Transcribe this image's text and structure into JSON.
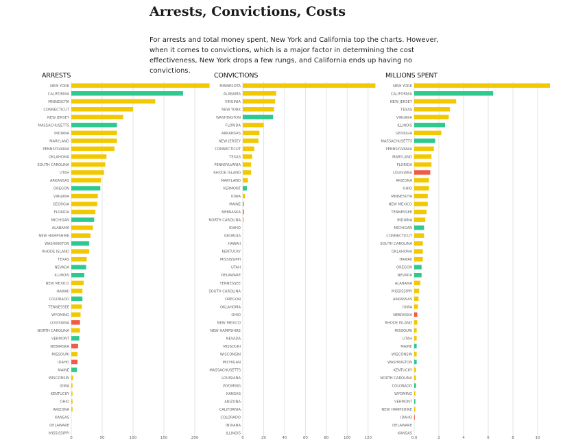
{
  "title": "Arrests, Convictions, Costs",
  "intro": "For arrests and total money spent, New York and California top the charts. However, when it comes to convictions, which is a major factor in determining the cost effectiveness, New York drops a few rungs, and California ends up having no convictions.",
  "colors": {
    "yellow": "#f2c900",
    "green": "#2ec98f",
    "red": "#ef5b43",
    "grid": "#e3e3e3",
    "label": "#666666"
  },
  "chart_data": [
    {
      "type": "bar",
      "title": "ARRESTS",
      "xlim": [
        0,
        220
      ],
      "ticks": [
        0,
        50,
        100,
        150,
        200
      ],
      "bars": [
        {
          "label": "NEW YORK",
          "value": 224,
          "color": "yellow"
        },
        {
          "label": "CALIFORNIA",
          "value": 181,
          "color": "green"
        },
        {
          "label": "MINNESOTA",
          "value": 136,
          "color": "yellow"
        },
        {
          "label": "CONNECTICUT",
          "value": 100,
          "color": "yellow"
        },
        {
          "label": "NEW JERSEY",
          "value": 84,
          "color": "yellow"
        },
        {
          "label": "MASSACHUSETTS",
          "value": 74,
          "color": "green"
        },
        {
          "label": "INDIANA",
          "value": 74,
          "color": "yellow"
        },
        {
          "label": "MARYLAND",
          "value": 74,
          "color": "yellow"
        },
        {
          "label": "PENNSYLVANIA",
          "value": 70,
          "color": "yellow"
        },
        {
          "label": "OKLAHOMA",
          "value": 57,
          "color": "yellow"
        },
        {
          "label": "SOUTH CAROLINA",
          "value": 55,
          "color": "yellow"
        },
        {
          "label": "UTAH",
          "value": 53,
          "color": "yellow"
        },
        {
          "label": "ARKANSAS",
          "value": 48,
          "color": "yellow"
        },
        {
          "label": "OREGON",
          "value": 47,
          "color": "green"
        },
        {
          "label": "VIRGINIA",
          "value": 43,
          "color": "yellow"
        },
        {
          "label": "GEORGIA",
          "value": 42,
          "color": "yellow"
        },
        {
          "label": "FLORIDA",
          "value": 39,
          "color": "yellow"
        },
        {
          "label": "MICHIGAN",
          "value": 37,
          "color": "green"
        },
        {
          "label": "ALABAMA",
          "value": 35,
          "color": "yellow"
        },
        {
          "label": "NEW HAMPSHIRE",
          "value": 31,
          "color": "yellow"
        },
        {
          "label": "WASHINGTON",
          "value": 29,
          "color": "green"
        },
        {
          "label": "RHODE ISLAND",
          "value": 29,
          "color": "yellow"
        },
        {
          "label": "TEXAS",
          "value": 25,
          "color": "yellow"
        },
        {
          "label": "NEVADA",
          "value": 24,
          "color": "green"
        },
        {
          "label": "ILLINOIS",
          "value": 21,
          "color": "green"
        },
        {
          "label": "NEW MEXICO",
          "value": 20,
          "color": "yellow"
        },
        {
          "label": "HAWAII",
          "value": 18,
          "color": "yellow"
        },
        {
          "label": "COLORADO",
          "value": 18,
          "color": "green"
        },
        {
          "label": "TENNESSEE",
          "value": 17,
          "color": "yellow"
        },
        {
          "label": "WYOMING",
          "value": 15,
          "color": "yellow"
        },
        {
          "label": "LOUISIANA",
          "value": 14,
          "color": "red"
        },
        {
          "label": "NORTH CAROLINA",
          "value": 14,
          "color": "yellow"
        },
        {
          "label": "VERMONT",
          "value": 13,
          "color": "green"
        },
        {
          "label": "NEBRASKA",
          "value": 11,
          "color": "red"
        },
        {
          "label": "MISSOURI",
          "value": 10,
          "color": "yellow"
        },
        {
          "label": "IDAHO",
          "value": 10,
          "color": "red"
        },
        {
          "label": "MAINE",
          "value": 9,
          "color": "green"
        },
        {
          "label": "WISCONSIN",
          "value": 3,
          "color": "yellow"
        },
        {
          "label": "IOWA",
          "value": 2,
          "color": "yellow"
        },
        {
          "label": "KENTUCKY",
          "value": 2,
          "color": "yellow"
        },
        {
          "label": "OHIO",
          "value": 2,
          "color": "yellow"
        },
        {
          "label": "ARIZONA",
          "value": 2,
          "color": "yellow"
        },
        {
          "label": "KANSAS",
          "value": 0,
          "color": "yellow"
        },
        {
          "label": "DELAWARE",
          "value": 0,
          "color": "yellow"
        },
        {
          "label": "MISSISSIPPI",
          "value": 0,
          "color": "yellow"
        }
      ]
    },
    {
      "type": "bar",
      "title": "CONVICTIONS",
      "xlim": [
        0,
        130
      ],
      "ticks": [
        0,
        20,
        40,
        60,
        80,
        100,
        120
      ],
      "bars": [
        {
          "label": "MINNESOTA",
          "value": 127,
          "color": "yellow"
        },
        {
          "label": "ALABAMA",
          "value": 32,
          "color": "yellow"
        },
        {
          "label": "VIRGINIA",
          "value": 31,
          "color": "yellow"
        },
        {
          "label": "NEW YORK",
          "value": 30,
          "color": "yellow"
        },
        {
          "label": "WASHINGTON",
          "value": 29,
          "color": "green"
        },
        {
          "label": "FLORIDA",
          "value": 20,
          "color": "yellow"
        },
        {
          "label": "ARKANSAS",
          "value": 16,
          "color": "yellow"
        },
        {
          "label": "NEW JERSEY",
          "value": 15,
          "color": "yellow"
        },
        {
          "label": "CONNECTICUT",
          "value": 11,
          "color": "yellow"
        },
        {
          "label": "TEXAS",
          "value": 9,
          "color": "yellow"
        },
        {
          "label": "PENNSYLVANIA",
          "value": 8,
          "color": "yellow"
        },
        {
          "label": "RHODE ISLAND",
          "value": 8,
          "color": "yellow"
        },
        {
          "label": "MARYLAND",
          "value": 5,
          "color": "yellow"
        },
        {
          "label": "VERMONT",
          "value": 4,
          "color": "green"
        },
        {
          "label": "IOWA",
          "value": 2,
          "color": "yellow"
        },
        {
          "label": "MAINE",
          "value": 1,
          "color": "green"
        },
        {
          "label": "NEBRASKA",
          "value": 1,
          "color": "red"
        },
        {
          "label": "NORTH CAROLINA",
          "value": 1,
          "color": "yellow"
        },
        {
          "label": "IDAHO",
          "value": 0,
          "color": "red"
        },
        {
          "label": "GEORGIA",
          "value": 0,
          "color": "yellow"
        },
        {
          "label": "HAWAII",
          "value": 0,
          "color": "yellow"
        },
        {
          "label": "KENTUCKY",
          "value": 0,
          "color": "yellow"
        },
        {
          "label": "MISSISSIPPI",
          "value": 0,
          "color": "yellow"
        },
        {
          "label": "UTAH",
          "value": 0,
          "color": "yellow"
        },
        {
          "label": "DELAWARE",
          "value": 0,
          "color": "yellow"
        },
        {
          "label": "TENNESSEE",
          "value": 0,
          "color": "yellow"
        },
        {
          "label": "SOUTH CAROLINA",
          "value": 0,
          "color": "yellow"
        },
        {
          "label": "OREGON",
          "value": 0,
          "color": "green"
        },
        {
          "label": "OKLAHOMA",
          "value": 0,
          "color": "yellow"
        },
        {
          "label": "OHIO",
          "value": 0,
          "color": "yellow"
        },
        {
          "label": "NEW MEXICO",
          "value": 0,
          "color": "yellow"
        },
        {
          "label": "NEW HAMPSHIRE",
          "value": 0,
          "color": "yellow"
        },
        {
          "label": "NEVADA",
          "value": 0,
          "color": "green"
        },
        {
          "label": "MISSOURI",
          "value": 0,
          "color": "yellow"
        },
        {
          "label": "WISCONSIN",
          "value": 0,
          "color": "yellow"
        },
        {
          "label": "MICHIGAN",
          "value": 0,
          "color": "green"
        },
        {
          "label": "MASSACHUSETTS",
          "value": 0,
          "color": "green"
        },
        {
          "label": "LOUISIANA",
          "value": 0,
          "color": "red"
        },
        {
          "label": "WYOMING",
          "value": 0,
          "color": "yellow"
        },
        {
          "label": "KANSAS",
          "value": 0,
          "color": "yellow"
        },
        {
          "label": "ARIZONA",
          "value": 0,
          "color": "yellow"
        },
        {
          "label": "CALIFORNIA",
          "value": 0,
          "color": "green"
        },
        {
          "label": "COLORADO",
          "value": 0,
          "color": "green"
        },
        {
          "label": "INDIANA",
          "value": 0,
          "color": "yellow"
        },
        {
          "label": "ILLINOIS",
          "value": 0,
          "color": "green"
        }
      ]
    },
    {
      "type": "bar",
      "title": "MILLIONS SPENT",
      "xlim": [
        0,
        11
      ],
      "ticks": [
        0,
        2,
        4,
        6,
        8,
        10
      ],
      "tick_labels": [
        "0.0",
        "2",
        "4",
        "6",
        "8",
        "10"
      ],
      "bars": [
        {
          "label": "NEW YORK",
          "value": 11.0,
          "color": "yellow"
        },
        {
          "label": "CALIFORNIA",
          "value": 6.4,
          "color": "green"
        },
        {
          "label": "NEW JERSEY",
          "value": 3.4,
          "color": "yellow"
        },
        {
          "label": "TEXAS",
          "value": 2.9,
          "color": "yellow"
        },
        {
          "label": "VIRGINIA",
          "value": 2.8,
          "color": "yellow"
        },
        {
          "label": "ILLINOIS",
          "value": 2.5,
          "color": "green"
        },
        {
          "label": "GEORGIA",
          "value": 2.2,
          "color": "yellow"
        },
        {
          "label": "MASSACHUSETTS",
          "value": 1.7,
          "color": "green"
        },
        {
          "label": "PENNSYLVANIA",
          "value": 1.6,
          "color": "yellow"
        },
        {
          "label": "MARYLAND",
          "value": 1.4,
          "color": "yellow"
        },
        {
          "label": "FLORIDA",
          "value": 1.4,
          "color": "yellow"
        },
        {
          "label": "LOUISIANA",
          "value": 1.3,
          "color": "red"
        },
        {
          "label": "ARIZONA",
          "value": 1.2,
          "color": "yellow"
        },
        {
          "label": "OHIO",
          "value": 1.2,
          "color": "yellow"
        },
        {
          "label": "MINNESOTA",
          "value": 1.1,
          "color": "yellow"
        },
        {
          "label": "NEW MEXICO",
          "value": 1.1,
          "color": "yellow"
        },
        {
          "label": "TENNESSEE",
          "value": 1.0,
          "color": "yellow"
        },
        {
          "label": "INDIANA",
          "value": 0.9,
          "color": "yellow"
        },
        {
          "label": "MICHIGAN",
          "value": 0.8,
          "color": "green"
        },
        {
          "label": "CONNECTICUT",
          "value": 0.8,
          "color": "yellow"
        },
        {
          "label": "SOUTH CAROLINA",
          "value": 0.7,
          "color": "yellow"
        },
        {
          "label": "OKLAHOMA",
          "value": 0.7,
          "color": "yellow"
        },
        {
          "label": "HAWAII",
          "value": 0.7,
          "color": "yellow"
        },
        {
          "label": "OREGON",
          "value": 0.6,
          "color": "green"
        },
        {
          "label": "NEVADA",
          "value": 0.6,
          "color": "green"
        },
        {
          "label": "ALABAMA",
          "value": 0.5,
          "color": "yellow"
        },
        {
          "label": "MISSISSIPPI",
          "value": 0.4,
          "color": "yellow"
        },
        {
          "label": "ARKANSAS",
          "value": 0.35,
          "color": "yellow"
        },
        {
          "label": "IOWA",
          "value": 0.3,
          "color": "yellow"
        },
        {
          "label": "NEBRASKA",
          "value": 0.25,
          "color": "red"
        },
        {
          "label": "RHODE ISLAND",
          "value": 0.25,
          "color": "yellow"
        },
        {
          "label": "MISSOURI",
          "value": 0.2,
          "color": "yellow"
        },
        {
          "label": "UTAH",
          "value": 0.2,
          "color": "yellow"
        },
        {
          "label": "MAINE",
          "value": 0.2,
          "color": "green"
        },
        {
          "label": "WISCONSIN",
          "value": 0.2,
          "color": "yellow"
        },
        {
          "label": "WASHINGTON",
          "value": 0.2,
          "color": "green"
        },
        {
          "label": "KENTUCKY",
          "value": 0.15,
          "color": "yellow"
        },
        {
          "label": "NORTH CAROLINA",
          "value": 0.15,
          "color": "yellow"
        },
        {
          "label": "COLORADO",
          "value": 0.15,
          "color": "green"
        },
        {
          "label": "WYOMING",
          "value": 0.1,
          "color": "yellow"
        },
        {
          "label": "VERMONT",
          "value": 0.1,
          "color": "green"
        },
        {
          "label": "NEW HAMPSHIRE",
          "value": 0.1,
          "color": "yellow"
        },
        {
          "label": "IDAHO",
          "value": 0.05,
          "color": "red"
        },
        {
          "label": "DELAWARE",
          "value": 0.0,
          "color": "yellow"
        },
        {
          "label": "KANSAS",
          "value": 0.0,
          "color": "yellow"
        }
      ]
    }
  ]
}
